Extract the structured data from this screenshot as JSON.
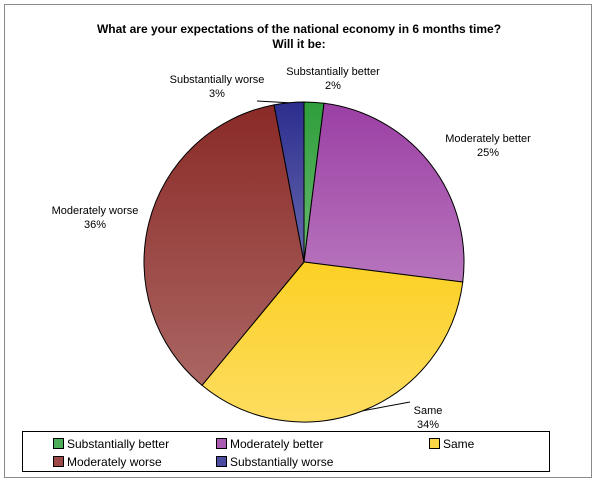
{
  "chart_data": {
    "type": "pie",
    "title": "What are your expectations of the national economy in 6 months time? Will it be:",
    "title_lines": [
      "What are your expectations of the national economy in 6 months time?",
      "Will it be:"
    ],
    "start_angle_deg": 0,
    "direction": "clockwise",
    "slices": [
      {
        "label": "Substantially better",
        "value": 2,
        "display": "2%",
        "color": "#2e9e3a"
      },
      {
        "label": "Moderately better",
        "value": 25,
        "display": "25%",
        "color": "#9b3fa4"
      },
      {
        "label": "Same",
        "value": 34,
        "display": "34%",
        "color": "#fcd024"
      },
      {
        "label": "Moderately worse",
        "value": 36,
        "display": "36%",
        "color": "#8a2a27"
      },
      {
        "label": "Substantially worse",
        "value": 3,
        "display": "3%",
        "color": "#2c2d8e"
      }
    ],
    "legend_position": "bottom",
    "legend": [
      "Substantially better",
      "Moderately better",
      "Same",
      "Moderately worse",
      "Substantially worse"
    ]
  }
}
